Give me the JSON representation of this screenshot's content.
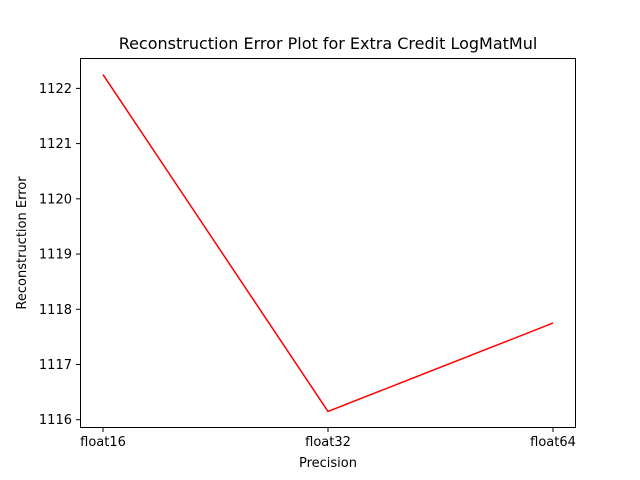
{
  "chart_data": {
    "type": "line",
    "title": "Reconstruction Error Plot for Extra Credit LogMatMul",
    "xlabel": "Precision",
    "ylabel": "Reconstruction Error",
    "categories": [
      "float16",
      "float32",
      "float64"
    ],
    "series": [
      {
        "values": [
          1122.25,
          1116.15,
          1117.75
        ],
        "color": "#ff0000"
      }
    ],
    "ylim": [
      1115.85,
      1122.55
    ],
    "yticks": [
      1116,
      1117,
      1118,
      1119,
      1120,
      1121,
      1122
    ],
    "grid": false,
    "legend": false
  }
}
